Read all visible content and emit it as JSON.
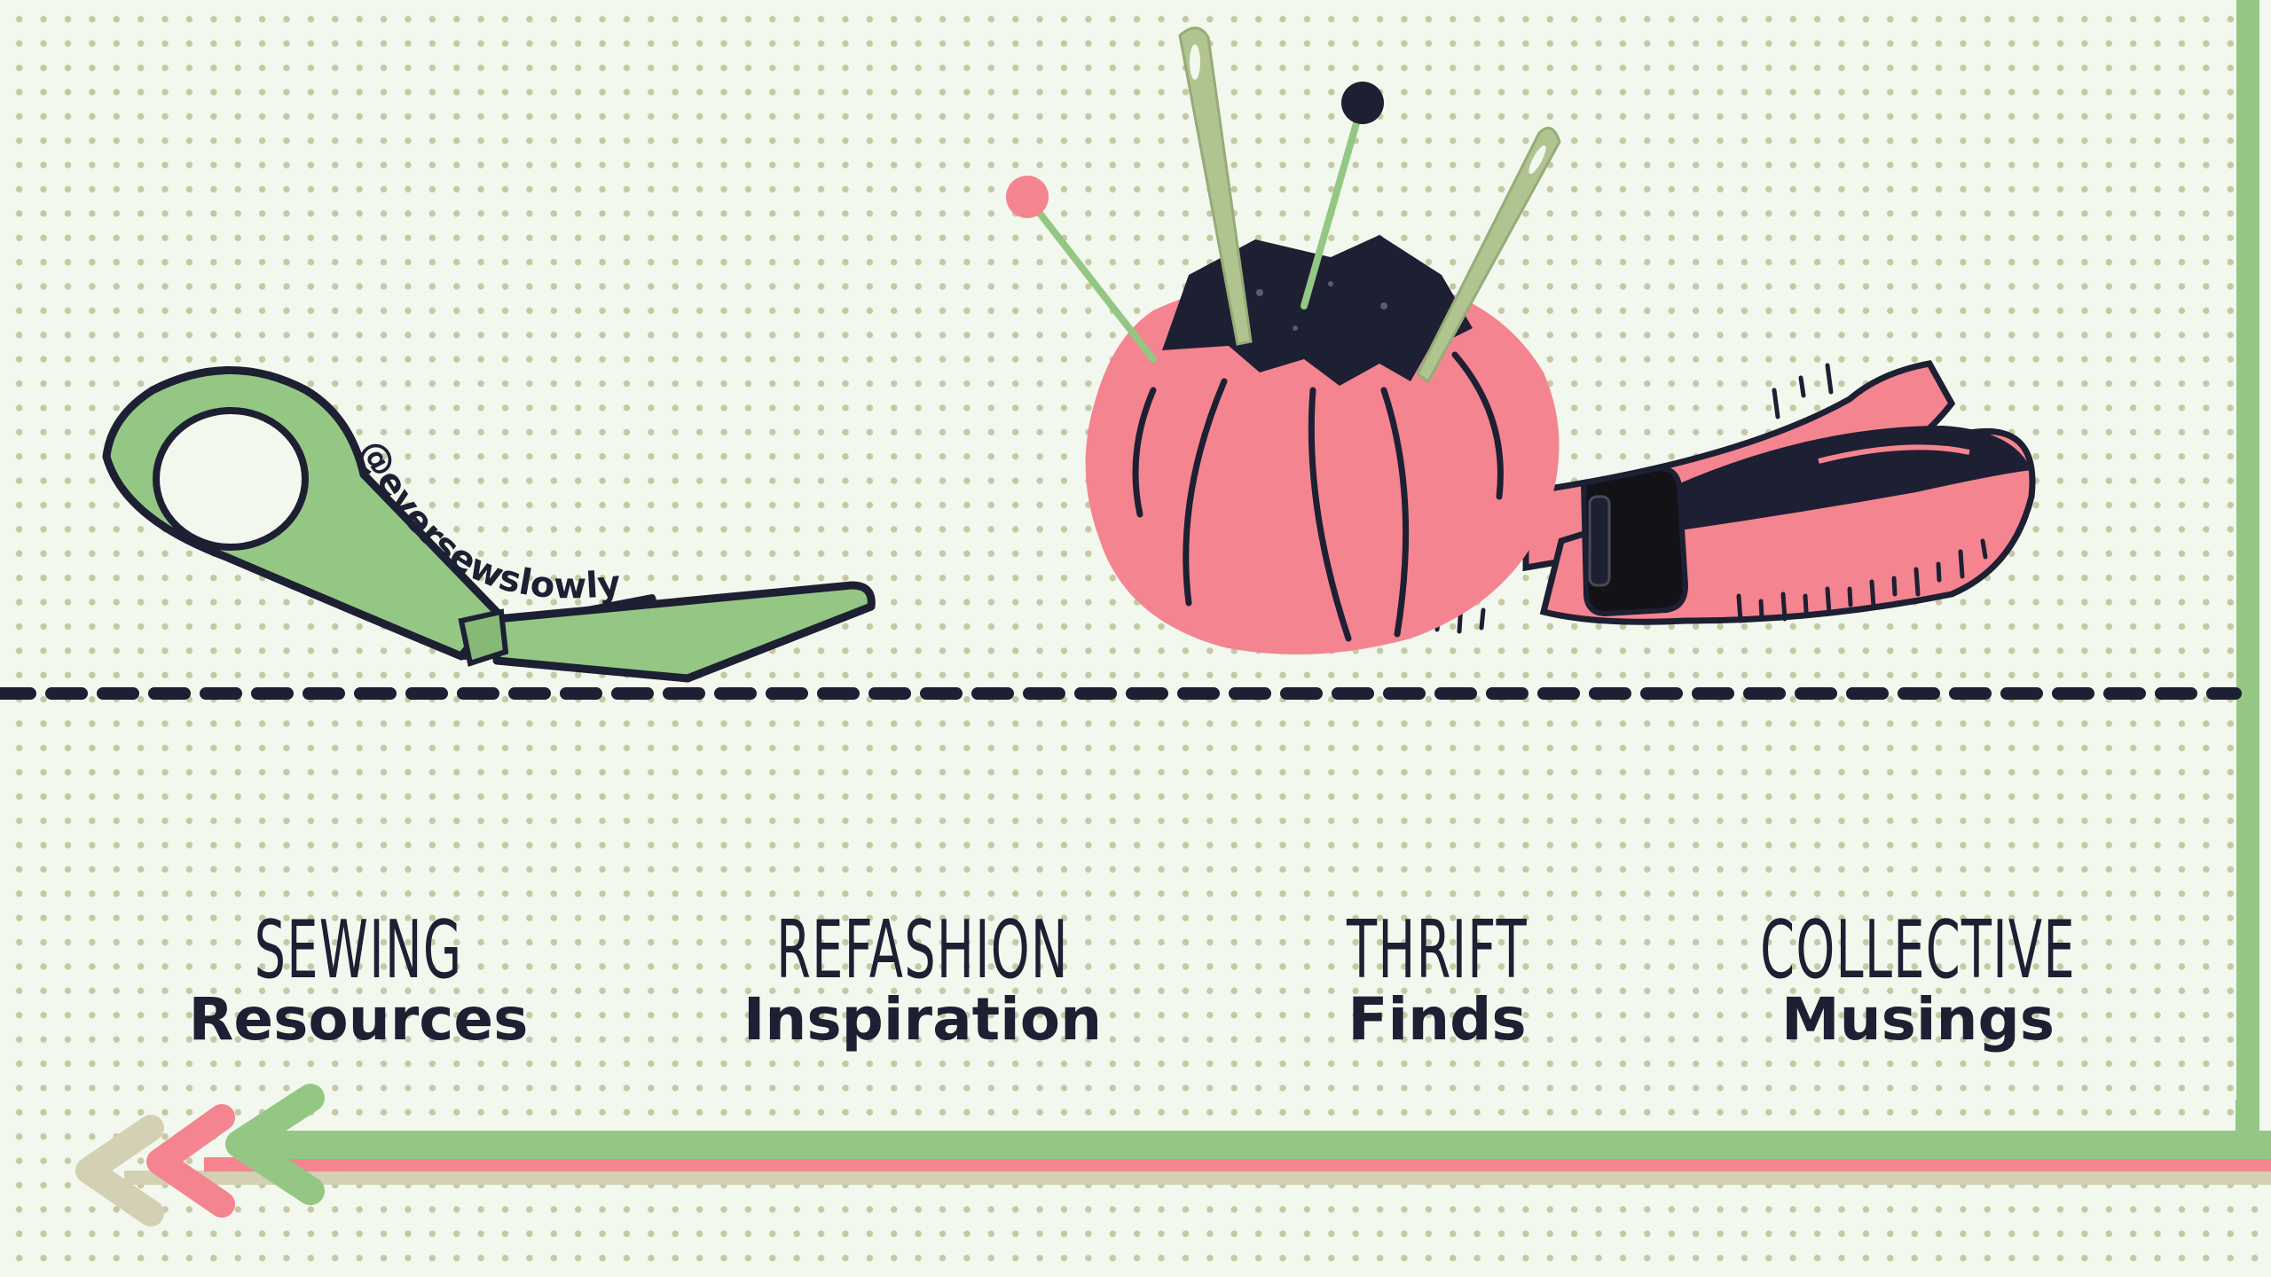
{
  "brand": {
    "handle": "@eversewslowly"
  },
  "nav": {
    "items": [
      {
        "top": "SEWING",
        "bottom": "Resources"
      },
      {
        "top": "REFASHION",
        "bottom": "Inspiration"
      },
      {
        "top": "THRIFT",
        "bottom": "Finds"
      },
      {
        "top": "COLLECTIVE",
        "bottom": "Musings"
      }
    ]
  },
  "colors": {
    "background": "#f3f8ee",
    "dots": "#c6c8a4",
    "navy": "#1d1f33",
    "green": "#93c783",
    "pink": "#f4848f",
    "beige": "#d3d0b3"
  },
  "icons": [
    "scissors-icon",
    "pincushion-icon",
    "tape-measure-icon",
    "needle-icon",
    "pin-icon",
    "arrow-icon"
  ]
}
